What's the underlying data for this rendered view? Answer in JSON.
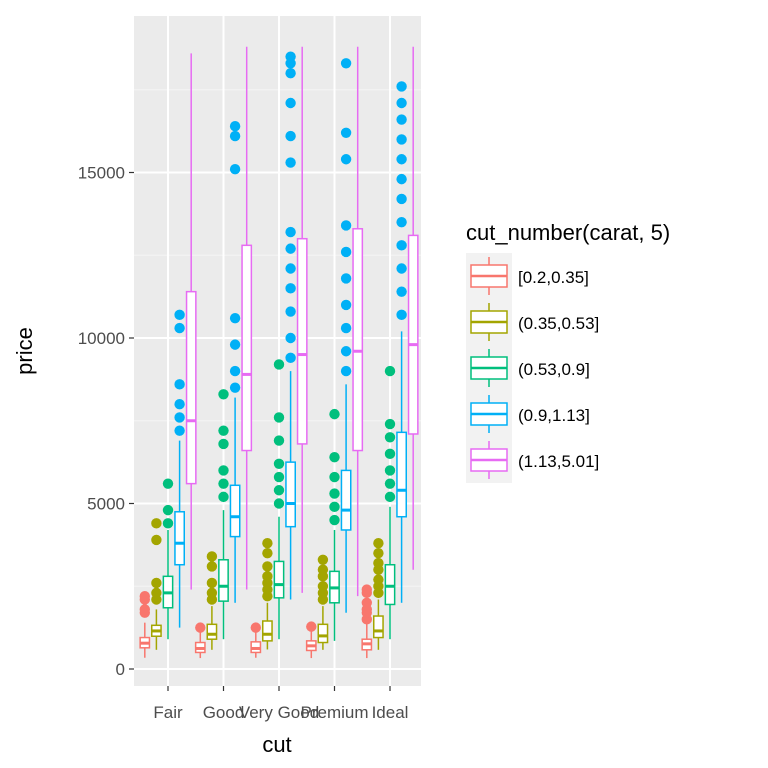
{
  "chart_data": {
    "type": "boxplot",
    "xlabel": "cut",
    "ylabel": "price",
    "categories": [
      "Fair",
      "Good",
      "Very Good",
      "Premium",
      "Ideal"
    ],
    "ylim": [
      -400,
      19300
    ],
    "yticks": [
      0,
      5000,
      10000,
      15000
    ],
    "ytick_labels": [
      "0",
      "5000",
      "10000",
      "15000"
    ],
    "grid": true,
    "legend_position": "right",
    "legend": {
      "title": "cut_number(carat, 5)",
      "entries": [
        "[0.2,0.35]",
        "(0.35,0.53]",
        "(0.53,0.9]",
        "(0.9,1.13]",
        "(1.13,5.01]"
      ]
    },
    "series_colors": [
      "#f8766d",
      "#a3a500",
      "#00bf7d",
      "#00b0f6",
      "#e76bf3"
    ],
    "series": [
      {
        "name": "[0.2,0.35]",
        "boxes": [
          {
            "category": "Fair",
            "whisker_low": 340,
            "q1": 640,
            "median": 780,
            "q3": 950,
            "whisker_high": 1400,
            "outliers": [
              1700,
              1800,
              2100,
              2200
            ]
          },
          {
            "category": "Good",
            "whisker_low": 330,
            "q1": 500,
            "median": 620,
            "q3": 800,
            "whisker_high": 1200,
            "outliers": [
              1250
            ]
          },
          {
            "category": "Very Good",
            "whisker_low": 340,
            "q1": 500,
            "median": 620,
            "q3": 820,
            "whisker_high": 1200,
            "outliers": [
              1250
            ]
          },
          {
            "category": "Premium",
            "whisker_low": 330,
            "q1": 560,
            "median": 700,
            "q3": 850,
            "whisker_high": 1200,
            "outliers": [
              1280
            ]
          },
          {
            "category": "Ideal",
            "whisker_low": 330,
            "q1": 580,
            "median": 760,
            "q3": 900,
            "whisker_high": 1400,
            "outliers": [
              1500,
              1700,
              1800,
              2000,
              2300,
              2400
            ]
          }
        ]
      },
      {
        "name": "(0.35,0.53]",
        "boxes": [
          {
            "category": "Fair",
            "whisker_low": 580,
            "q1": 990,
            "median": 1150,
            "q3": 1320,
            "whisker_high": 1800,
            "outliers": [
              2100,
              2300,
              2600,
              3900,
              4400
            ]
          },
          {
            "category": "Good",
            "whisker_low": 580,
            "q1": 900,
            "median": 1050,
            "q3": 1350,
            "whisker_high": 1900,
            "outliers": [
              2100,
              2300,
              2600,
              3100,
              3400
            ]
          },
          {
            "category": "Very Good",
            "whisker_low": 590,
            "q1": 850,
            "median": 1050,
            "q3": 1450,
            "whisker_high": 2000,
            "outliers": [
              2200,
              2400,
              2600,
              2800,
              3100,
              3500,
              3800
            ]
          },
          {
            "category": "Premium",
            "whisker_low": 580,
            "q1": 800,
            "median": 1000,
            "q3": 1350,
            "whisker_high": 1900,
            "outliers": [
              2100,
              2300,
              2500,
              2800,
              3000,
              3300
            ]
          },
          {
            "category": "Ideal",
            "whisker_low": 580,
            "q1": 950,
            "median": 1150,
            "q3": 1600,
            "whisker_high": 2100,
            "outliers": [
              2300,
              2500,
              2700,
              3000,
              3200,
              3500,
              3800
            ]
          }
        ]
      },
      {
        "name": "(0.53,0.9]",
        "boxes": [
          {
            "category": "Fair",
            "whisker_low": 900,
            "q1": 1850,
            "median": 2300,
            "q3": 2800,
            "whisker_high": 4200,
            "outliers": [
              4400,
              4800,
              5600
            ]
          },
          {
            "category": "Good",
            "whisker_low": 900,
            "q1": 2050,
            "median": 2500,
            "q3": 3300,
            "whisker_high": 4800,
            "outliers": [
              5200,
              5600,
              6000,
              6800,
              7200,
              8300
            ]
          },
          {
            "category": "Very Good",
            "whisker_low": 900,
            "q1": 2150,
            "median": 2550,
            "q3": 3250,
            "whisker_high": 4600,
            "outliers": [
              5000,
              5400,
              5800,
              6200,
              6900,
              7600,
              9200
            ]
          },
          {
            "category": "Premium",
            "whisker_low": 850,
            "q1": 2000,
            "median": 2450,
            "q3": 2950,
            "whisker_high": 4200,
            "outliers": [
              4500,
              4900,
              5300,
              5800,
              6400,
              7700
            ]
          },
          {
            "category": "Ideal",
            "whisker_low": 900,
            "q1": 1950,
            "median": 2500,
            "q3": 3150,
            "whisker_high": 4900,
            "outliers": [
              5200,
              5600,
              6000,
              6500,
              7000,
              7400,
              9000
            ]
          }
        ]
      },
      {
        "name": "(0.9,1.13]",
        "boxes": [
          {
            "category": "Fair",
            "whisker_low": 1250,
            "q1": 3150,
            "median": 3800,
            "q3": 4750,
            "whisker_high": 6900,
            "outliers": [
              7200,
              7600,
              8000,
              8600,
              10300,
              10700
            ]
          },
          {
            "category": "Good",
            "whisker_low": 2000,
            "q1": 4000,
            "median": 4600,
            "q3": 5550,
            "whisker_high": 8200,
            "outliers": [
              8500,
              9000,
              9800,
              10600,
              15100,
              16100,
              16400
            ]
          },
          {
            "category": "Very Good",
            "whisker_low": 2100,
            "q1": 4300,
            "median": 5000,
            "q3": 6250,
            "whisker_high": 9000,
            "outliers": [
              9400,
              10000,
              10800,
              11500,
              12100,
              12700,
              13200,
              15300,
              16100,
              17100,
              18000,
              18300,
              18500
            ]
          },
          {
            "category": "Premium",
            "whisker_low": 1700,
            "q1": 4200,
            "median": 4800,
            "q3": 6000,
            "whisker_high": 8600,
            "outliers": [
              9000,
              9600,
              10300,
              11000,
              11800,
              12600,
              13400,
              15400,
              16200,
              18300
            ]
          },
          {
            "category": "Ideal",
            "whisker_low": 2000,
            "q1": 4600,
            "median": 5400,
            "q3": 7150,
            "whisker_high": 10200,
            "outliers": [
              10700,
              11400,
              12100,
              12800,
              13500,
              14200,
              14800,
              15400,
              16000,
              16600,
              17100,
              17600
            ]
          }
        ]
      },
      {
        "name": "(1.13,5.01]",
        "boxes": [
          {
            "category": "Fair",
            "whisker_low": 2400,
            "q1": 5600,
            "median": 7500,
            "q3": 11400,
            "whisker_high": 18600,
            "outliers": []
          },
          {
            "category": "Good",
            "whisker_low": 2400,
            "q1": 6600,
            "median": 8900,
            "q3": 12800,
            "whisker_high": 18800,
            "outliers": []
          },
          {
            "category": "Very Good",
            "whisker_low": 2300,
            "q1": 6800,
            "median": 9500,
            "q3": 13000,
            "whisker_high": 18800,
            "outliers": []
          },
          {
            "category": "Premium",
            "whisker_low": 2200,
            "q1": 6600,
            "median": 9600,
            "q3": 13300,
            "whisker_high": 18800,
            "outliers": []
          },
          {
            "category": "Ideal",
            "whisker_low": 3000,
            "q1": 7100,
            "median": 9800,
            "q3": 13100,
            "whisker_high": 18800,
            "outliers": []
          }
        ]
      }
    ]
  }
}
